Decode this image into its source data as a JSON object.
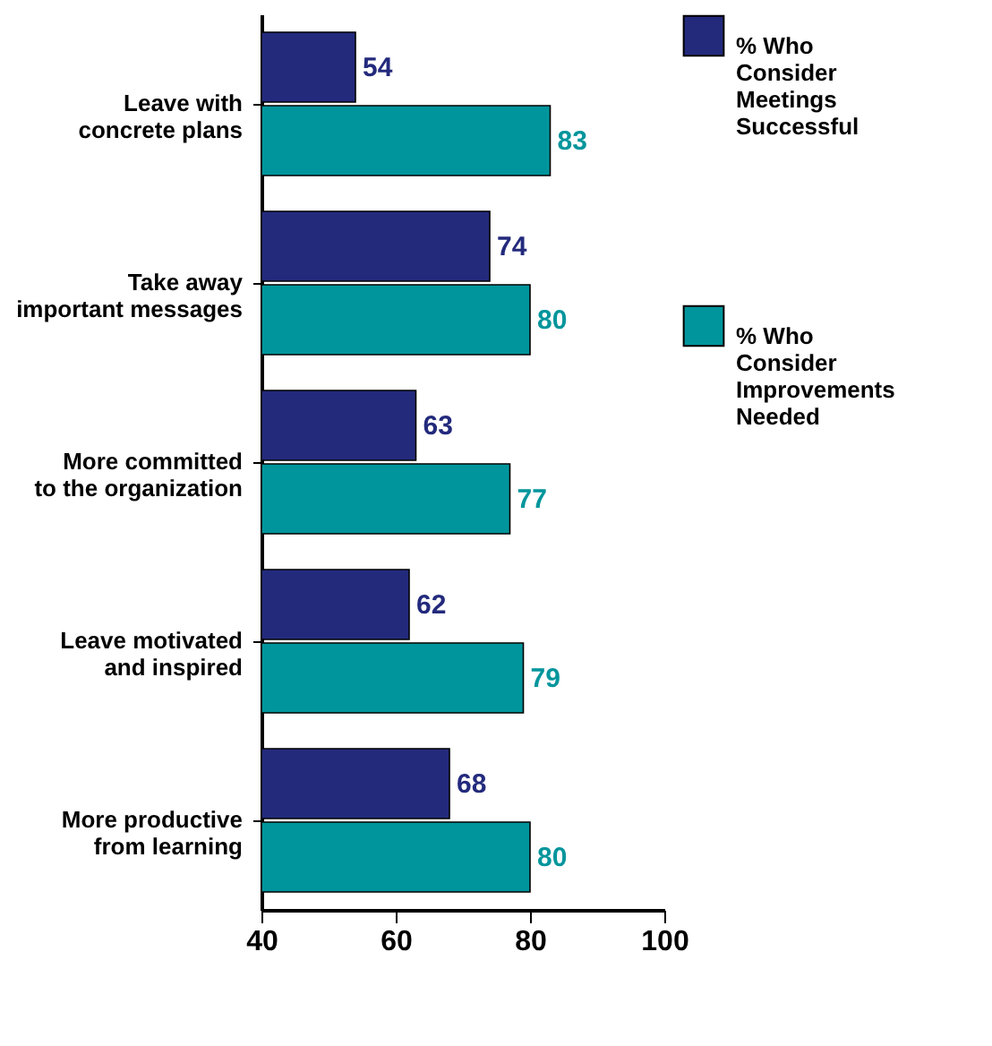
{
  "chart_data": {
    "type": "bar",
    "orientation": "horizontal",
    "categories": [
      "Leave with concrete plans",
      "Take away important messages",
      "More committed to the organization",
      "Leave motivated and inspired",
      "More productive from learning"
    ],
    "series": [
      {
        "name": "% Who Consider Meetings Successful",
        "color": "#232a7c",
        "values": [
          54,
          74,
          63,
          62,
          68
        ]
      },
      {
        "name": "% Who Consider Improvements Needed",
        "color": "#00959c",
        "values": [
          83,
          80,
          77,
          79,
          80
        ]
      }
    ],
    "xlim": [
      40,
      100
    ],
    "xticks": [
      40,
      60,
      80,
      100
    ],
    "data_labels": true,
    "legend": "right",
    "grid": false
  }
}
